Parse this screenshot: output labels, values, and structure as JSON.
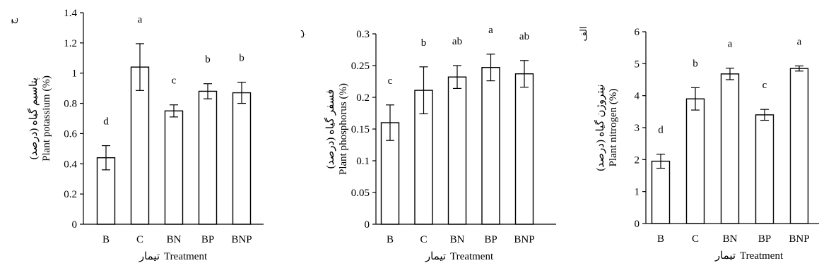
{
  "chart_data": [
    {
      "type": "bar",
      "panel_label": "ج",
      "ylabel_fa": "پتاسیم گیاه (درصد)",
      "ylabel": "Plant potassium (%)",
      "xlabel_fa": "تیمار",
      "xlabel": "Treatment",
      "categories": [
        "B",
        "C",
        "BN",
        "BP",
        "BNP"
      ],
      "values": [
        0.44,
        1.04,
        0.75,
        0.88,
        0.87
      ],
      "errors": [
        0.08,
        0.155,
        0.04,
        0.05,
        0.07
      ],
      "significance": [
        "d",
        "a",
        "c",
        "b",
        "b"
      ],
      "ylim": [
        0,
        1.4
      ],
      "yticks": [
        "0",
        "0.2",
        "0.4",
        "0.6",
        "0.8",
        "1",
        "1.2",
        "1.4"
      ],
      "grid": false
    },
    {
      "type": "bar",
      "panel_label": "ب",
      "ylabel_fa": "فسفر گیاه (درصد)",
      "ylabel": "Plant phosphorus (%)",
      "xlabel_fa": "تیمار",
      "xlabel": "Treatment",
      "categories": [
        "B",
        "C",
        "BN",
        "BP",
        "BNP"
      ],
      "values": [
        0.16,
        0.211,
        0.232,
        0.247,
        0.237
      ],
      "errors": [
        0.028,
        0.037,
        0.018,
        0.021,
        0.021
      ],
      "significance": [
        "c",
        "b",
        "ab",
        "a",
        "ab"
      ],
      "ylim": [
        0,
        0.3
      ],
      "yticks": [
        "0",
        "0.05",
        "0.1",
        "0.15",
        "0.2",
        "0.25",
        "0.3"
      ],
      "grid": false
    },
    {
      "type": "bar",
      "panel_label": "الف",
      "ylabel_fa": "نیتروژن گیاه (درصد)",
      "ylabel": "Plant nitrogen (%)",
      "xlabel_fa": "تیمار",
      "xlabel": "Treatment",
      "categories": [
        "B",
        "C",
        "BN",
        "BP",
        "BNP"
      ],
      "values": [
        1.95,
        3.9,
        4.68,
        3.4,
        4.85
      ],
      "errors": [
        0.22,
        0.35,
        0.18,
        0.17,
        0.08
      ],
      "significance": [
        "d",
        "b",
        "a",
        "c",
        "a"
      ],
      "ylim": [
        0,
        6
      ],
      "yticks": [
        "0",
        "1",
        "2",
        "3",
        "4",
        "5",
        "6"
      ],
      "grid": false
    }
  ]
}
